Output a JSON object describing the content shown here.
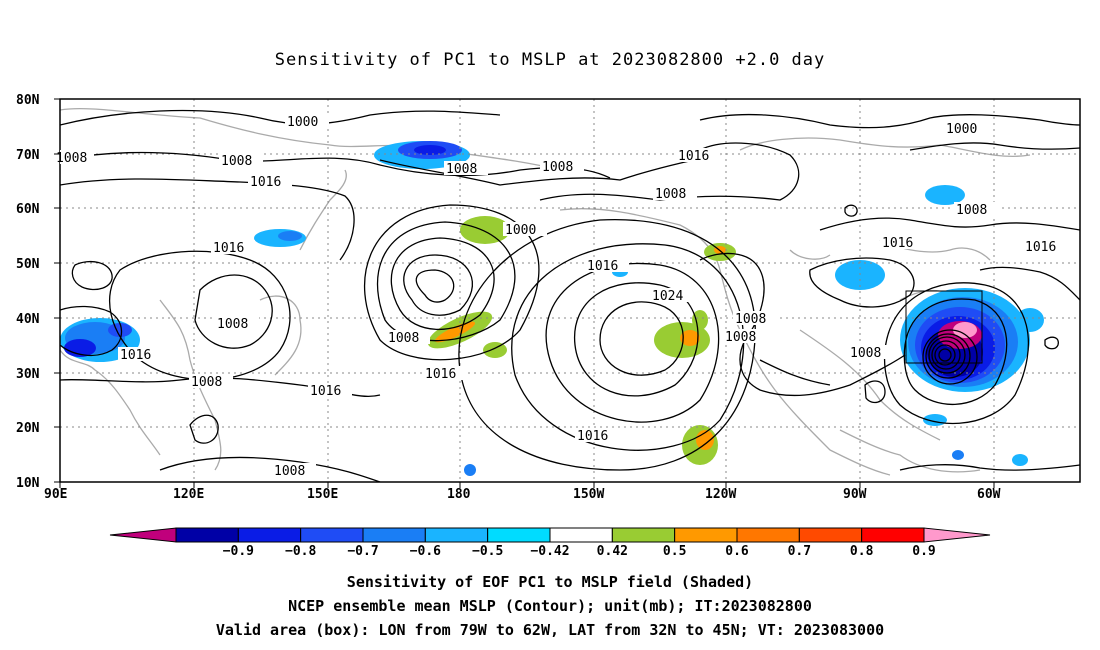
{
  "title": "Sensitivity of PC1 to MSLP at 2023082800 +2.0 day",
  "lat_labels": [
    "80N",
    "70N",
    "60N",
    "50N",
    "40N",
    "30N",
    "20N",
    "10N"
  ],
  "lon_labels": [
    "90E",
    "120E",
    "150E",
    "180",
    "150W",
    "120W",
    "90W",
    "60W"
  ],
  "colorbar": {
    "labels": [
      "-0.9",
      "-0.8",
      "-0.7",
      "-0.6",
      "-0.5",
      "-0.42",
      "0.42",
      "0.5",
      "0.6",
      "0.7",
      "0.8",
      "0.9"
    ],
    "colors": [
      "#c0007c",
      "#0000a6",
      "#0a1ce6",
      "#1f4cf5",
      "#1a7ef5",
      "#1ab4ff",
      "#00dcff",
      "#ffffff",
      "#99cc33",
      "#ff9900",
      "#ff7700",
      "#ff4a00",
      "#ff0000",
      "#ff99cc"
    ]
  },
  "contour_labels": [
    {
      "text": "1000"
    },
    {
      "text": "1008"
    },
    {
      "text": "1008"
    },
    {
      "text": "1016"
    },
    {
      "text": "1016"
    },
    {
      "text": "1008"
    },
    {
      "text": "1008"
    },
    {
      "text": "1016"
    },
    {
      "text": "1008"
    },
    {
      "text": "1016"
    },
    {
      "text": "1000"
    },
    {
      "text": "1008"
    },
    {
      "text": "1016"
    },
    {
      "text": "1008"
    },
    {
      "text": "1016"
    },
    {
      "text": "1016"
    },
    {
      "text": "1024"
    },
    {
      "text": "1008"
    },
    {
      "text": "1008"
    },
    {
      "text": "1016"
    },
    {
      "text": "1000"
    },
    {
      "text": "1008"
    },
    {
      "text": "1016"
    },
    {
      "text": "1008"
    },
    {
      "text": "1016"
    },
    {
      "text": "1008"
    },
    {
      "text": "1008"
    }
  ],
  "captions": {
    "line1": "Sensitivity of EOF PC1 to MSLP field (Shaded)",
    "line2": "NCEP ensemble mean MSLP (Contour); unit(mb); IT:2023082800",
    "line3": "Valid area (box): LON from 79W to 62W, LAT from 32N to 45N; VT: 2023083000"
  }
}
